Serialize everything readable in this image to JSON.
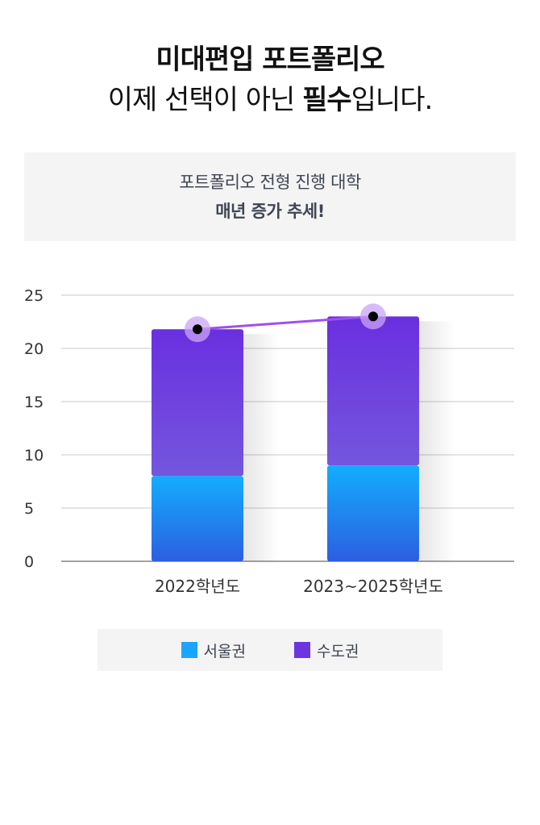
{
  "headline": {
    "line1": "미대편입 포트폴리오",
    "line2_prefix": "이제 선택이 아닌 ",
    "line2_bold": "필수",
    "line2_suffix": "입니다."
  },
  "callout": {
    "line1": "포트폴리오 전형 진행 대학",
    "line2": "매년 증가 추세!"
  },
  "colors": {
    "seoul": "#1aa6ff",
    "metro": "#6d35e0",
    "trend_line": "#a04ff0"
  },
  "chart_data": {
    "type": "bar",
    "stacked": true,
    "categories": [
      "2022학년도",
      "2023~2025학년도"
    ],
    "series": [
      {
        "name": "서울권",
        "values": [
          8,
          9
        ]
      },
      {
        "name": "수도권",
        "values": [
          13.8,
          14
        ]
      }
    ],
    "totals_line": [
      21.8,
      23
    ],
    "ylim": [
      0,
      25
    ],
    "yticks": [
      0,
      5,
      10,
      15,
      20,
      25
    ],
    "grid": true,
    "legend": "bottom"
  },
  "legend": {
    "items": [
      {
        "label": "서울권",
        "color": "#1aa6ff"
      },
      {
        "label": "수도권",
        "color": "#6d35e0"
      }
    ]
  }
}
